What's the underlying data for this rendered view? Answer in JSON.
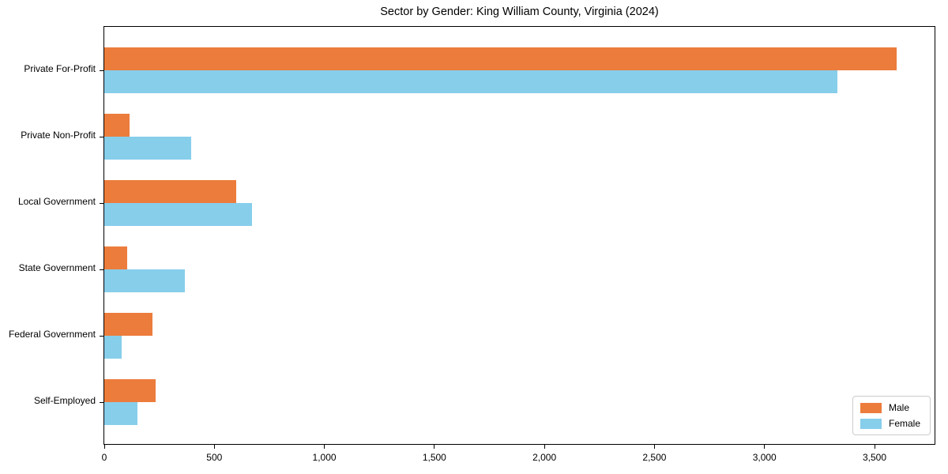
{
  "chart_data": {
    "type": "bar",
    "orientation": "horizontal",
    "title": "Sector by Gender: King William County, Virginia (2024)",
    "categories": [
      "Private For-Profit",
      "Private Non-Profit",
      "Local Government",
      "State Government",
      "Federal Government",
      "Self-Employed"
    ],
    "series": [
      {
        "name": "Male",
        "color": "#ec7c3c",
        "values": [
          3600,
          115,
          600,
          105,
          220,
          235
        ]
      },
      {
        "name": "Female",
        "color": "#87ceeb",
        "values": [
          3330,
          395,
          670,
          365,
          80,
          150
        ]
      }
    ],
    "xlim": [
      0,
      3780
    ],
    "xticks": [
      0,
      500,
      1000,
      1500,
      2000,
      2500,
      3000,
      3500
    ],
    "xtick_labels": [
      "0",
      "500",
      "1,000",
      "1,500",
      "2,000",
      "2,500",
      "3,000",
      "3,500"
    ],
    "ylabel": "",
    "xlabel": "",
    "grid": false,
    "legend_position": "lower right"
  }
}
